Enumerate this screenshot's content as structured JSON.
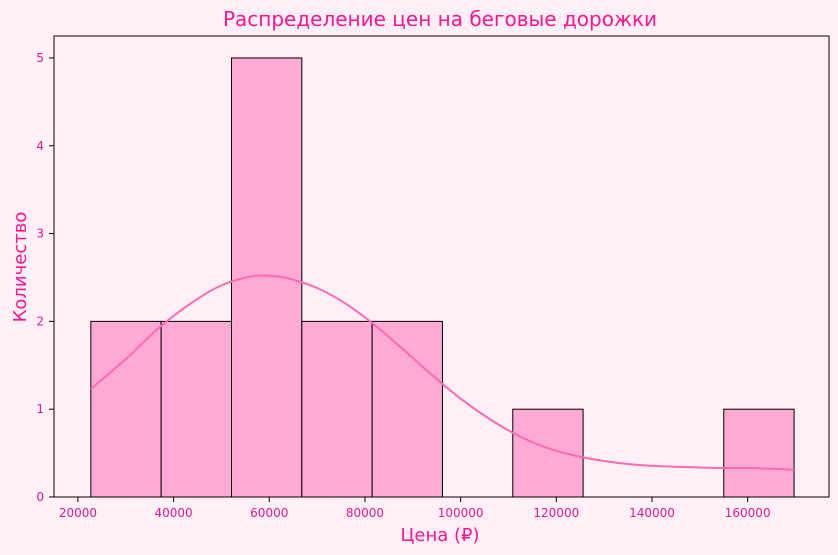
{
  "chart_data": {
    "type": "bar",
    "title": "Распределение цен на беговые дорожки",
    "xlabel": "Цена (₽)",
    "ylabel": "Количество",
    "xlim": [
      15000,
      177000
    ],
    "ylim": [
      0,
      5.25
    ],
    "xticks": [
      20000,
      40000,
      60000,
      80000,
      100000,
      120000,
      140000,
      160000
    ],
    "yticks": [
      0,
      1,
      2,
      3,
      4,
      5
    ],
    "bins": [
      {
        "x0": 22700,
        "x1": 37400,
        "count": 2
      },
      {
        "x0": 37400,
        "x1": 52100,
        "count": 2
      },
      {
        "x0": 52100,
        "x1": 66800,
        "count": 5
      },
      {
        "x0": 66800,
        "x1": 81500,
        "count": 2
      },
      {
        "x0": 81500,
        "x1": 96200,
        "count": 2
      },
      {
        "x0": 96200,
        "x1": 110900,
        "count": 0
      },
      {
        "x0": 110900,
        "x1": 125600,
        "count": 1
      },
      {
        "x0": 125600,
        "x1": 140300,
        "count": 0
      },
      {
        "x0": 140300,
        "x1": 155000,
        "count": 0
      },
      {
        "x0": 155000,
        "x1": 169700,
        "count": 1
      }
    ],
    "kde": {
      "x": [
        22700,
        30000,
        37000,
        44000,
        50000,
        56000,
        60000,
        64000,
        70000,
        76000,
        82000,
        88000,
        94000,
        100000,
        106000,
        112000,
        118000,
        124000,
        130000,
        136000,
        142000,
        148000,
        154000,
        160000,
        166000,
        169700
      ],
      "y": [
        1.23,
        1.57,
        1.93,
        2.22,
        2.41,
        2.51,
        2.52,
        2.49,
        2.38,
        2.2,
        1.96,
        1.68,
        1.39,
        1.12,
        0.89,
        0.7,
        0.56,
        0.47,
        0.41,
        0.37,
        0.35,
        0.34,
        0.33,
        0.33,
        0.32,
        0.31
      ]
    },
    "grid": false,
    "colors": {
      "background": "#fff0f5",
      "bar_fill": "#ffaad4",
      "bar_edge": "#000000",
      "kde_line": "#ff69b4",
      "text": "#ff1493",
      "tick_text": "#e0189a"
    }
  }
}
